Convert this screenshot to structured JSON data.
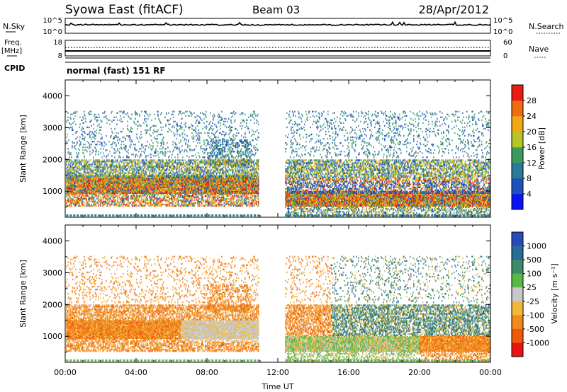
{
  "header": {
    "station": "Syowa East (fitACF)",
    "beam": "Beam 03",
    "date": "28/Apr/2012"
  },
  "nsky_panel": {
    "left_label": "N.Sky",
    "left_ticks": [
      "10^5",
      "10^0"
    ],
    "right_label": "N.Search",
    "right_ticks": [
      "10^5",
      "10^0"
    ]
  },
  "freq_panel": {
    "left_label_1": "Freq.",
    "left_label_2": "[MHz]",
    "left_ticks": [
      "18",
      "8"
    ],
    "right_label": "Nave",
    "right_ticks": [
      "60",
      "0"
    ]
  },
  "cpid": {
    "label": "CPID",
    "value": "normal (fast) 151 RF"
  },
  "chart_data": [
    {
      "type": "heatmap",
      "quantity": "power",
      "xlabel": "",
      "ylabel": "Slant Range [km]",
      "xlim": [
        0,
        24
      ],
      "ylim": [
        180,
        4500
      ],
      "yticks": [
        "1000",
        "2000",
        "3000",
        "4000"
      ],
      "xticks": [
        "00:00",
        "04:00",
        "08:00",
        "12:00",
        "16:00",
        "20:00",
        "00:00"
      ],
      "colorbar": {
        "label": "Power [dB]",
        "ticks": [
          "4",
          "8",
          "12",
          "16",
          "20",
          "24",
          "28"
        ],
        "colors": [
          "#0a14f0",
          "#1f52b8",
          "#2a7a98",
          "#3c9a5c",
          "#b8c42a",
          "#f0a814",
          "#f06c10",
          "#e81c10"
        ]
      }
    },
    {
      "type": "heatmap",
      "quantity": "velocity",
      "xlabel": "Time UT",
      "ylabel": "Slant Range [km]",
      "xlim": [
        0,
        24
      ],
      "ylim": [
        180,
        4500
      ],
      "yticks": [
        "1000",
        "2000",
        "3000",
        "4000"
      ],
      "xticks": [
        "00:00",
        "04:00",
        "08:00",
        "12:00",
        "16:00",
        "20:00",
        "00:00"
      ],
      "colorbar": {
        "label": "Velocity [m s⁻¹]",
        "ticks": [
          "1000",
          "500",
          "100",
          "25",
          "-25",
          "-100",
          "-500",
          "-1000"
        ],
        "colors": [
          "#2a4ab8",
          "#2a6a9a",
          "#3e8a6a",
          "#5ab84a",
          "#c8c8c8",
          "#f0b83a",
          "#f08a1e",
          "#f0580e",
          "#e81414"
        ]
      }
    }
  ]
}
